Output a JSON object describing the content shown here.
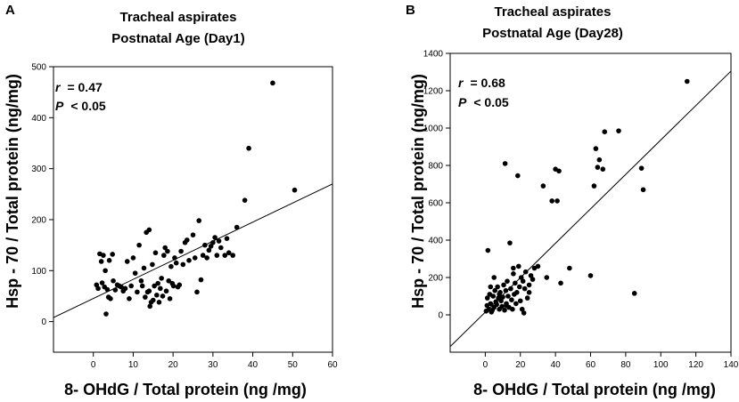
{
  "chart_data": [
    {
      "type": "scatter",
      "panel_label": "A",
      "title_line1": "Tracheal aspirates",
      "title_line2": "Postnatal Age (Day1)",
      "xlabel": "8- OHdG / Total protein (ng /mg)",
      "ylabel": "Hsp - 70 / Total protein (ng/mg)",
      "xlim": [
        -10,
        60
      ],
      "ylim": [
        -60,
        500
      ],
      "x_ticks": [
        0,
        10,
        20,
        30,
        40,
        50,
        60
      ],
      "y_ticks": [
        0,
        100,
        200,
        300,
        400,
        500
      ],
      "r_symbol": "r",
      "r_text": "= 0.47",
      "p_symbol": "P",
      "p_text": "< 0.05",
      "regression": {
        "x0": -10,
        "y0": 8,
        "x1": 60,
        "y1": 270
      },
      "points": [
        [
          0.8,
          72
        ],
        [
          1.2,
          65
        ],
        [
          1.6,
          133
        ],
        [
          2.0,
          118
        ],
        [
          2.2,
          76
        ],
        [
          2.5,
          130
        ],
        [
          2.8,
          68
        ],
        [
          3.0,
          100
        ],
        [
          3.2,
          15
        ],
        [
          3.5,
          63
        ],
        [
          3.8,
          48
        ],
        [
          4.0,
          120
        ],
        [
          4.3,
          45
        ],
        [
          4.8,
          132
        ],
        [
          5.0,
          80
        ],
        [
          5.5,
          62
        ],
        [
          6.0,
          72
        ],
        [
          6.5,
          70
        ],
        [
          7.0,
          68
        ],
        [
          7.5,
          60
        ],
        [
          8.0,
          65
        ],
        [
          8.5,
          118
        ],
        [
          9.0,
          45
        ],
        [
          9.5,
          70
        ],
        [
          10.0,
          125
        ],
        [
          10.5,
          95
        ],
        [
          11.0,
          58
        ],
        [
          11.5,
          150
        ],
        [
          12.0,
          80
        ],
        [
          12.3,
          70
        ],
        [
          12.7,
          105
        ],
        [
          13.0,
          48
        ],
        [
          13.3,
          175
        ],
        [
          13.6,
          58
        ],
        [
          14.0,
          60
        ],
        [
          14.2,
          30
        ],
        [
          14.5,
          38
        ],
        [
          14.8,
          112
        ],
        [
          15.0,
          42
        ],
        [
          15.3,
          70
        ],
        [
          15.6,
          135
        ],
        [
          15.9,
          52
        ],
        [
          16.2,
          75
        ],
        [
          16.5,
          38
        ],
        [
          16.8,
          65
        ],
        [
          17.1,
          85
        ],
        [
          17.4,
          50
        ],
        [
          17.7,
          130
        ],
        [
          18.0,
          145
        ],
        [
          18.3,
          60
        ],
        [
          18.6,
          138
        ],
        [
          18.9,
          80
        ],
        [
          19.2,
          45
        ],
        [
          19.5,
          108
        ],
        [
          19.8,
          75
        ],
        [
          20.1,
          70
        ],
        [
          20.4,
          125
        ],
        [
          20.8,
          115
        ],
        [
          21.2,
          68
        ],
        [
          21.6,
          72
        ],
        [
          22.0,
          138
        ],
        [
          22.5,
          112
        ],
        [
          23.0,
          155
        ],
        [
          23.5,
          160
        ],
        [
          24.0,
          120
        ],
        [
          25.0,
          170
        ],
        [
          25.5,
          125
        ],
        [
          26.0,
          58
        ],
        [
          26.5,
          198
        ],
        [
          27.0,
          82
        ],
        [
          27.5,
          130
        ],
        [
          28.0,
          150
        ],
        [
          28.5,
          125
        ],
        [
          29.0,
          140
        ],
        [
          29.5,
          148
        ],
        [
          30.0,
          155
        ],
        [
          30.5,
          165
        ],
        [
          31.0,
          130
        ],
        [
          31.5,
          158
        ],
        [
          32.0,
          145
        ],
        [
          33.0,
          130
        ],
        [
          33.5,
          163
        ],
        [
          34.0,
          135
        ],
        [
          35.0,
          130
        ],
        [
          36.0,
          185
        ],
        [
          38.0,
          238
        ],
        [
          39.0,
          340
        ],
        [
          45.0,
          468
        ],
        [
          50.5,
          258
        ],
        [
          14.0,
          180
        ]
      ]
    },
    {
      "type": "scatter",
      "panel_label": "B",
      "title_line1": "Tracheal aspirates",
      "title_line2": "Postnatal Age (Day28)",
      "xlabel": "8- OHdG / Total protein (ng /mg)",
      "ylabel": "Hsp - 70 / Total protein (ng/mg)",
      "xlim": [
        -20,
        140
      ],
      "ylim": [
        -200,
        1400
      ],
      "x_ticks": [
        0,
        20,
        40,
        60,
        80,
        100,
        120,
        140
      ],
      "y_ticks": [
        0,
        200,
        400,
        600,
        800,
        1000,
        1200,
        1400
      ],
      "r_symbol": "r",
      "r_text": "= 0.68",
      "p_symbol": "P",
      "p_text": "< 0.05",
      "regression": {
        "x0": -20,
        "y0": -170,
        "x1": 140,
        "y1": 1305
      },
      "points": [
        [
          0.5,
          20
        ],
        [
          1.0,
          50
        ],
        [
          1.2,
          90
        ],
        [
          1.5,
          345
        ],
        [
          2.0,
          30
        ],
        [
          2.5,
          110
        ],
        [
          3.0,
          60
        ],
        [
          3.5,
          15
        ],
        [
          4.0,
          25
        ],
        [
          4.5,
          100
        ],
        [
          5.0,
          40
        ],
        [
          5.5,
          130
        ],
        [
          6.0,
          70
        ],
        [
          6.5,
          55
        ],
        [
          7.0,
          150
        ],
        [
          7.5,
          90
        ],
        [
          8.0,
          30
        ],
        [
          8.5,
          120
        ],
        [
          9.0,
          75
        ],
        [
          9.5,
          45
        ],
        [
          10.0,
          95
        ],
        [
          10.5,
          160
        ],
        [
          11.0,
          25
        ],
        [
          11.3,
          810
        ],
        [
          11.7,
          130
        ],
        [
          12.0,
          60
        ],
        [
          12.5,
          180
        ],
        [
          13.0,
          100
        ],
        [
          13.5,
          40
        ],
        [
          14.0,
          385
        ],
        [
          14.5,
          140
        ],
        [
          15.0,
          80
        ],
        [
          15.5,
          30
        ],
        [
          16.0,
          220
        ],
        [
          16.5,
          110
        ],
        [
          17.0,
          170
        ],
        [
          17.5,
          60
        ],
        [
          18.0,
          120
        ],
        [
          18.5,
          745
        ],
        [
          19.0,
          260
        ],
        [
          19.5,
          150
        ],
        [
          20.0,
          75
        ],
        [
          20.5,
          200
        ],
        [
          21.0,
          30
        ],
        [
          21.5,
          180
        ],
        [
          22.0,
          10
        ],
        [
          22.5,
          140
        ],
        [
          23.0,
          230
        ],
        [
          24.0,
          90
        ],
        [
          25.0,
          160
        ],
        [
          26.0,
          210
        ],
        [
          27.0,
          190
        ],
        [
          28.0,
          250
        ],
        [
          30.0,
          260
        ],
        [
          33.0,
          690
        ],
        [
          35.0,
          200
        ],
        [
          38.0,
          610
        ],
        [
          40.0,
          780
        ],
        [
          41.0,
          610
        ],
        [
          42.0,
          770
        ],
        [
          43.0,
          170
        ],
        [
          48.0,
          250
        ],
        [
          60.0,
          210
        ],
        [
          62.0,
          690
        ],
        [
          63.0,
          890
        ],
        [
          64.0,
          790
        ],
        [
          65.0,
          830
        ],
        [
          67.0,
          780
        ],
        [
          68.0,
          980
        ],
        [
          76.0,
          985
        ],
        [
          85.0,
          115
        ],
        [
          89.0,
          785
        ],
        [
          90.0,
          670
        ],
        [
          115.0,
          1250
        ],
        [
          5.0,
          200
        ],
        [
          8.0,
          110
        ],
        [
          12.0,
          50
        ],
        [
          16.0,
          250
        ],
        [
          3.0,
          150
        ],
        [
          25.0,
          120
        ]
      ]
    }
  ]
}
